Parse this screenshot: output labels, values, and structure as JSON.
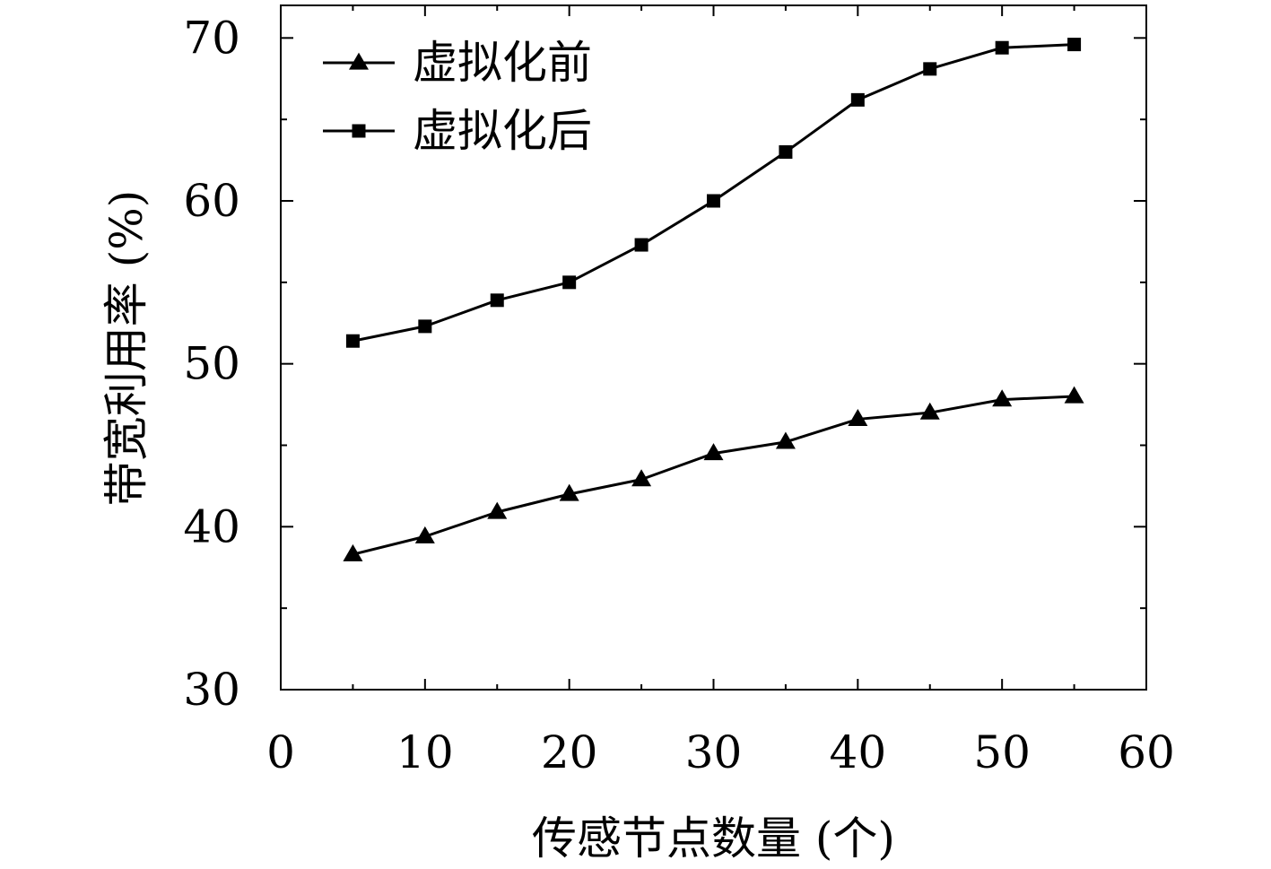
{
  "chart_data": {
    "type": "line",
    "xlabel": "传感节点数量 (个)",
    "ylabel": "带宽利用率 (%)",
    "xlim": [
      0,
      60
    ],
    "ylim": [
      30,
      72
    ],
    "xticks": [
      0,
      10,
      20,
      30,
      40,
      50,
      60
    ],
    "yticks": [
      30,
      40,
      50,
      60,
      70
    ],
    "x": [
      5,
      10,
      15,
      20,
      25,
      30,
      35,
      40,
      45,
      50,
      55
    ],
    "legend_position": "top-left",
    "grid": false,
    "series": [
      {
        "name": "虚拟化前",
        "marker": "triangle",
        "color": "#000000",
        "values": [
          38.3,
          39.4,
          40.9,
          42.0,
          42.9,
          44.5,
          45.2,
          46.6,
          47.0,
          47.8,
          48.0
        ]
      },
      {
        "name": "虚拟化后",
        "marker": "square",
        "color": "#000000",
        "values": [
          51.4,
          52.3,
          53.9,
          55.0,
          57.3,
          60.0,
          63.0,
          66.2,
          68.1,
          69.4,
          69.6
        ]
      }
    ]
  }
}
